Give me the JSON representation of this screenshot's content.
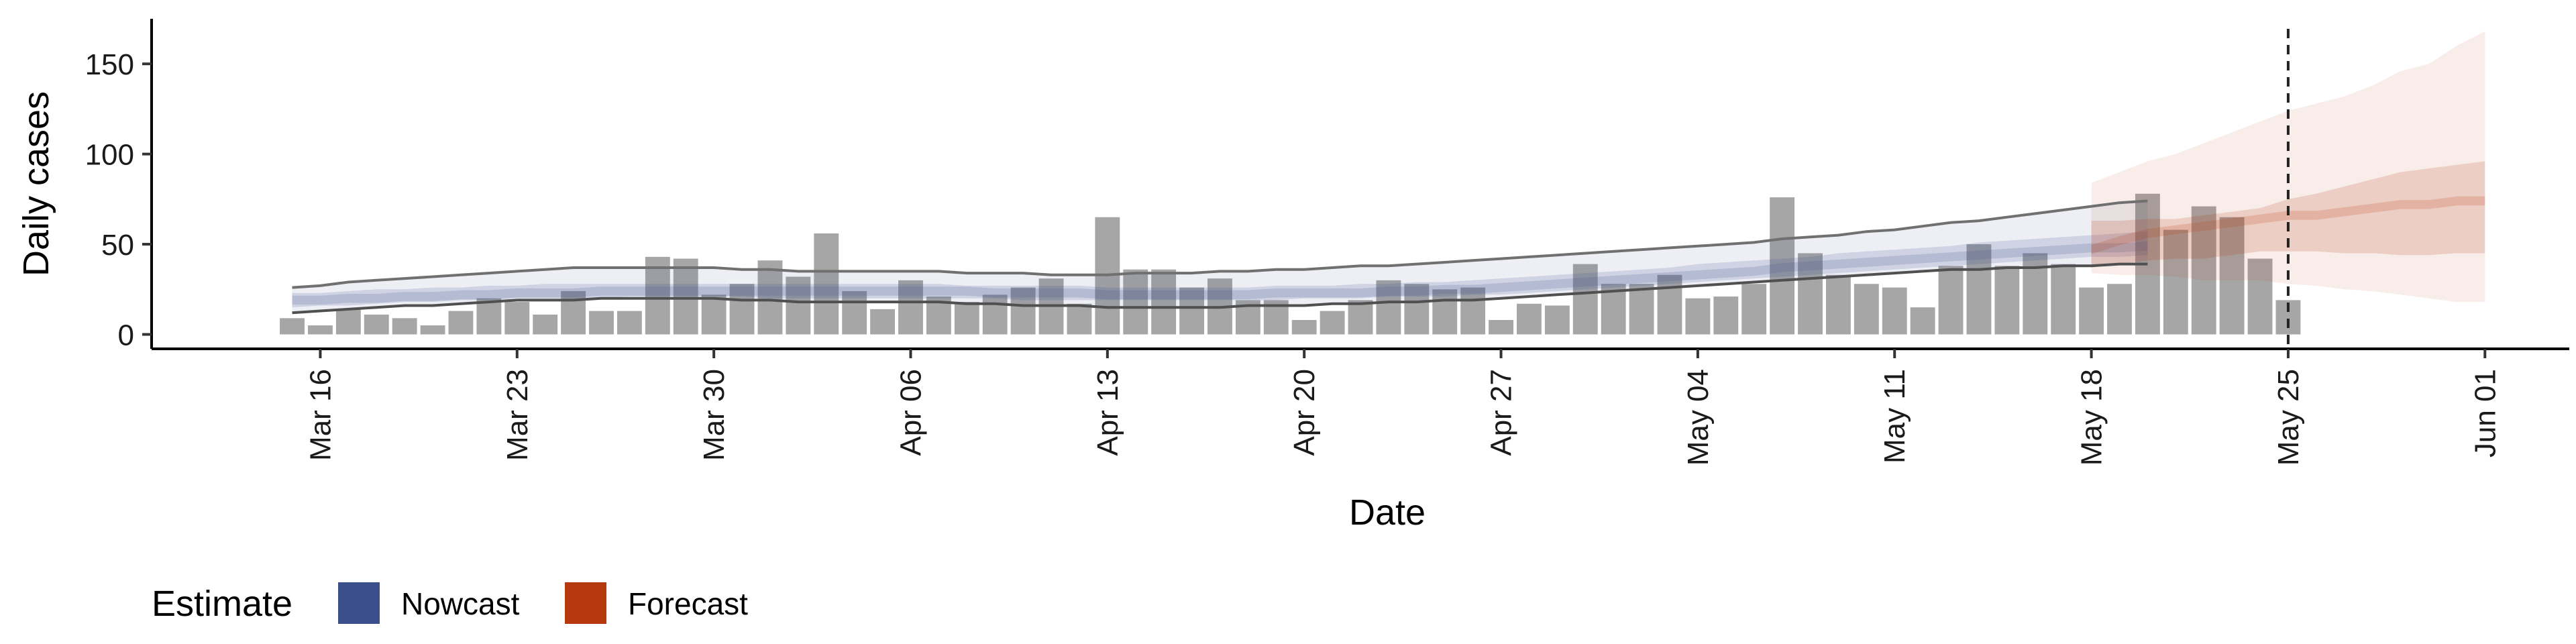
{
  "chart_data": {
    "type": "bar",
    "title": "",
    "xlabel": "Date",
    "ylabel": "Daily cases",
    "ylim": [
      -8,
      175
    ],
    "yticks": [
      0,
      50,
      100,
      150
    ],
    "xlim": [
      "2020-03-10",
      "2020-06-04"
    ],
    "x_ticks": [
      {
        "date": "2020-03-16",
        "label": "Mar 16"
      },
      {
        "date": "2020-03-23",
        "label": "Mar 23"
      },
      {
        "date": "2020-03-30",
        "label": "Mar 30"
      },
      {
        "date": "2020-04-06",
        "label": "Apr 06"
      },
      {
        "date": "2020-04-13",
        "label": "Apr 13"
      },
      {
        "date": "2020-04-20",
        "label": "Apr 20"
      },
      {
        "date": "2020-04-27",
        "label": "Apr 27"
      },
      {
        "date": "2020-05-04",
        "label": "May 04"
      },
      {
        "date": "2020-05-11",
        "label": "May 11"
      },
      {
        "date": "2020-05-18",
        "label": "May 18"
      },
      {
        "date": "2020-05-25",
        "label": "May 25"
      },
      {
        "date": "2020-06-01",
        "label": "Jun 01"
      }
    ],
    "vline_date": "2020-05-25",
    "bars": {
      "start_date": "2020-03-15",
      "color": "#a6a6a6",
      "values": [
        9,
        5,
        14,
        11,
        9,
        5,
        13,
        20,
        18,
        11,
        24,
        13,
        13,
        43,
        42,
        22,
        28,
        41,
        32,
        56,
        24,
        14,
        30,
        21,
        18,
        22,
        26,
        31,
        17,
        65,
        36,
        36,
        26,
        31,
        19,
        19,
        8,
        13,
        19,
        30,
        28,
        25,
        26,
        8,
        17,
        16,
        39,
        28,
        28,
        33,
        20,
        21,
        28,
        76,
        45,
        33,
        28,
        26,
        15,
        38,
        50,
        38,
        45,
        39,
        26,
        28,
        78,
        58,
        71,
        65,
        42,
        19
      ]
    },
    "series": [
      {
        "name": "Nowcast",
        "color": "#3b4f8c",
        "start_date": "2020-03-15",
        "median": [
          19,
          19,
          20,
          20,
          21,
          21,
          22,
          22,
          23,
          23,
          23,
          24,
          24,
          24,
          24,
          24,
          24,
          24,
          24,
          24,
          24,
          24,
          24,
          24,
          24,
          23,
          23,
          23,
          23,
          22,
          22,
          22,
          22,
          22,
          22,
          23,
          23,
          23,
          23,
          24,
          24,
          25,
          25,
          26,
          27,
          28,
          29,
          30,
          31,
          32,
          33,
          34,
          35,
          37,
          38,
          39,
          40,
          41,
          42,
          43,
          44,
          45,
          46,
          47,
          48,
          48,
          49
        ],
        "inner_lo": [
          15,
          16,
          16,
          17,
          18,
          18,
          19,
          19,
          20,
          20,
          20,
          20,
          21,
          21,
          21,
          21,
          21,
          20,
          20,
          20,
          20,
          20,
          20,
          20,
          20,
          20,
          19,
          19,
          19,
          19,
          19,
          19,
          19,
          19,
          19,
          19,
          20,
          20,
          20,
          21,
          21,
          21,
          22,
          22,
          23,
          24,
          25,
          26,
          27,
          28,
          29,
          30,
          31,
          32,
          33,
          34,
          35,
          36,
          37,
          38,
          39,
          40,
          41,
          42,
          43,
          43,
          44
        ],
        "inner_hi": [
          23,
          23,
          24,
          25,
          25,
          26,
          26,
          27,
          27,
          28,
          28,
          28,
          28,
          28,
          28,
          28,
          28,
          28,
          28,
          28,
          28,
          28,
          28,
          28,
          27,
          27,
          27,
          27,
          27,
          26,
          26,
          26,
          26,
          26,
          26,
          27,
          27,
          27,
          28,
          28,
          29,
          29,
          30,
          31,
          32,
          33,
          34,
          35,
          36,
          37,
          39,
          40,
          41,
          42,
          43,
          45,
          46,
          47,
          48,
          49,
          51,
          52,
          53,
          54,
          55,
          56,
          57
        ],
        "outer_lo": [
          12,
          13,
          14,
          15,
          16,
          16,
          17,
          18,
          19,
          19,
          19,
          20,
          20,
          20,
          20,
          20,
          19,
          19,
          18,
          18,
          18,
          18,
          18,
          18,
          17,
          17,
          16,
          16,
          16,
          15,
          15,
          15,
          15,
          15,
          16,
          16,
          16,
          17,
          17,
          18,
          18,
          19,
          19,
          20,
          21,
          22,
          23,
          24,
          25,
          26,
          27,
          28,
          29,
          30,
          31,
          32,
          33,
          34,
          35,
          36,
          36,
          37,
          37,
          38,
          38,
          39,
          39
        ],
        "outer_hi": [
          26,
          27,
          29,
          30,
          31,
          32,
          33,
          34,
          35,
          36,
          37,
          37,
          37,
          37,
          37,
          37,
          36,
          36,
          35,
          35,
          35,
          35,
          35,
          35,
          34,
          34,
          34,
          33,
          33,
          33,
          34,
          34,
          34,
          35,
          35,
          36,
          36,
          37,
          38,
          38,
          39,
          40,
          41,
          42,
          43,
          44,
          45,
          46,
          47,
          48,
          49,
          50,
          51,
          53,
          54,
          55,
          57,
          58,
          60,
          62,
          63,
          65,
          67,
          69,
          71,
          73,
          74
        ]
      },
      {
        "name": "Forecast",
        "color": "#b5380f",
        "start_date": "2020-05-18",
        "median": [
          47,
          52,
          56,
          58,
          60,
          62,
          64,
          66,
          66,
          68,
          70,
          72,
          72,
          74,
          74
        ],
        "inner_lo": [
          37,
          39,
          41,
          42,
          42,
          44,
          46,
          46,
          46,
          45,
          45,
          44,
          44,
          45,
          45
        ],
        "inner_hi": [
          63,
          63,
          64,
          64,
          66,
          68,
          70,
          75,
          78,
          82,
          86,
          90,
          92,
          94,
          96
        ],
        "outer_lo": [
          34,
          33,
          33,
          32,
          30,
          30,
          30,
          28,
          27,
          25,
          24,
          22,
          20,
          18,
          18
        ],
        "outer_hi": [
          84,
          90,
          96,
          100,
          106,
          112,
          118,
          124,
          128,
          132,
          138,
          146,
          150,
          160,
          168
        ]
      }
    ],
    "legend": {
      "title": "Estimate",
      "position": "bottom-left",
      "items": [
        {
          "label": "Nowcast",
          "color": "#3b4f8c"
        },
        {
          "label": "Forecast",
          "color": "#b5380f"
        }
      ]
    },
    "grid": false
  }
}
